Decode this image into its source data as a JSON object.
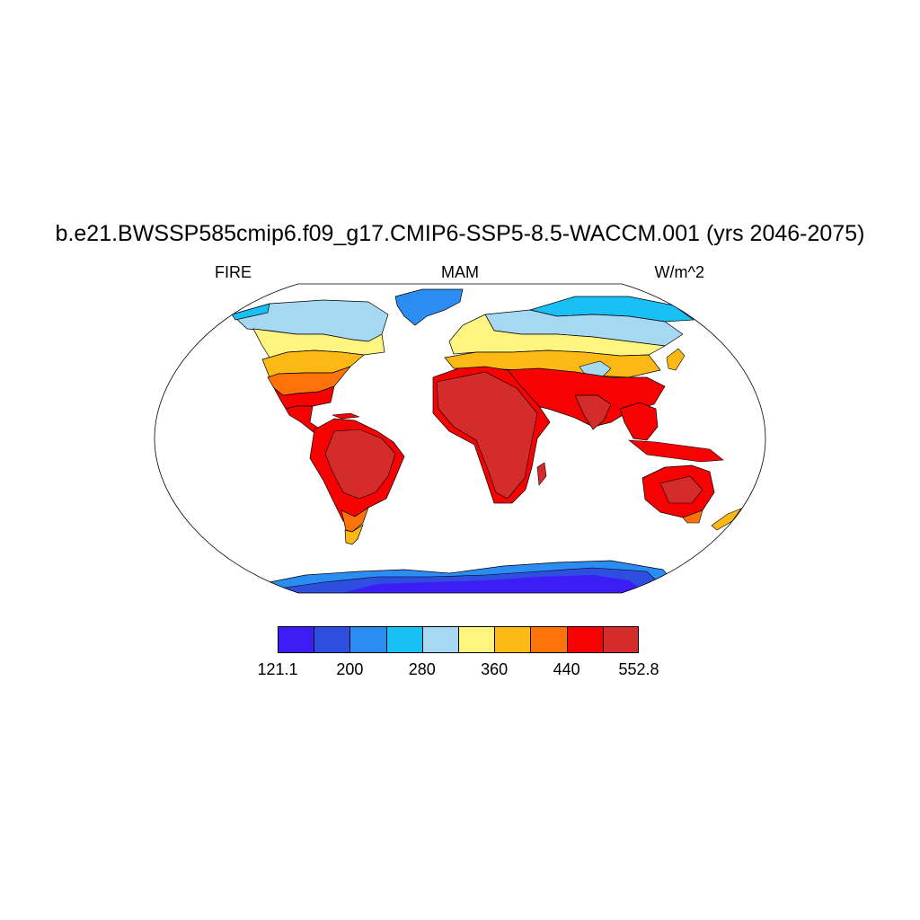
{
  "title": "b.e21.BWSSP585cmip6.f09_g17.CMIP6-SSP5-8.5-WACCM.001 (yrs 2046-2075)",
  "left_string": "FIRE",
  "center_string": "MAM",
  "right_string": "W/m^2",
  "colorbar": {
    "colors": [
      "#3d1df5",
      "#2e4ee0",
      "#2b8cf2",
      "#19c0f5",
      "#a6d8f2",
      "#fdf580",
      "#fcb915",
      "#fd7209",
      "#f70202",
      "#d42b2b"
    ],
    "labels": [
      "121.1",
      "200",
      "280",
      "360",
      "440",
      "552.8"
    ],
    "label_boundaries": [
      0,
      2,
      4,
      6,
      8,
      10
    ]
  }
}
